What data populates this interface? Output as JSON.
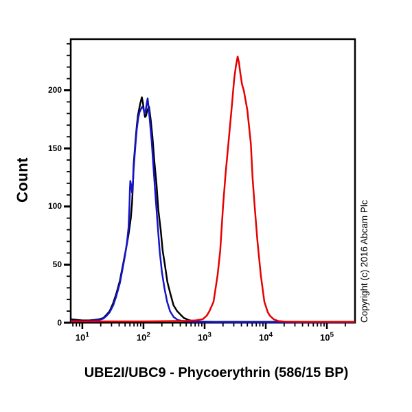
{
  "copyright": "Copyright (c) 2016 Abcam Plc",
  "chart_data": {
    "type": "line",
    "subtype": "flow-cytometry-overlay-histogram",
    "title": "",
    "xlabel": "UBE2I/UBC9 - Phycoerythrin (586/15 BP)",
    "ylabel": "Count",
    "x_scale": "log10",
    "x_range_log10": [
      0.81,
      5.46
    ],
    "ylim": [
      0,
      244
    ],
    "yticks_major": [
      0,
      50,
      100,
      150,
      200
    ],
    "ytick_minor_step": 10,
    "xtick_label_base": "10",
    "xtick_decade_exponents": [
      1,
      2,
      3,
      4,
      5
    ],
    "grid": false,
    "legend": "none",
    "axis_color": "#000000",
    "series": [
      {
        "name": "black",
        "color": "#000000",
        "points": [
          [
            6.5,
            3
          ],
          [
            8,
            2.5
          ],
          [
            10,
            2
          ],
          [
            13,
            2
          ],
          [
            16,
            2.5
          ],
          [
            19,
            3
          ],
          [
            22,
            4
          ],
          [
            25,
            7
          ],
          [
            28,
            10
          ],
          [
            32,
            17
          ],
          [
            36,
            25
          ],
          [
            41,
            36
          ],
          [
            47,
            52
          ],
          [
            52,
            64
          ],
          [
            57,
            76
          ],
          [
            62,
            90
          ],
          [
            65,
            103
          ],
          [
            67,
            118
          ],
          [
            69,
            136
          ],
          [
            72,
            148
          ],
          [
            75,
            160
          ],
          [
            78,
            170
          ],
          [
            81,
            178
          ],
          [
            85,
            184
          ],
          [
            88,
            188
          ],
          [
            94,
            194
          ],
          [
            98,
            189
          ],
          [
            102,
            182
          ],
          [
            106,
            177
          ],
          [
            110,
            178
          ],
          [
            116,
            183
          ],
          [
            123,
            186
          ],
          [
            131,
            175
          ],
          [
            140,
            160
          ],
          [
            151,
            138
          ],
          [
            163,
            120
          ],
          [
            175,
            97
          ],
          [
            191,
            80
          ],
          [
            206,
            62
          ],
          [
            224,
            50
          ],
          [
            246,
            35
          ],
          [
            275,
            25
          ],
          [
            310,
            15
          ],
          [
            356,
            10
          ],
          [
            420,
            6
          ],
          [
            460,
            4
          ],
          [
            540,
            2.5
          ],
          [
            630,
            1.5
          ],
          [
            800,
            1
          ],
          [
            1500,
            0.8
          ],
          [
            5000,
            0.8
          ],
          [
            20000,
            0.8
          ],
          [
            80000,
            0.8
          ],
          [
            280000,
            0.8
          ]
        ]
      },
      {
        "name": "blue",
        "color": "#1414cc",
        "points": [
          [
            6.5,
            2
          ],
          [
            8,
            1.5
          ],
          [
            10,
            1.5
          ],
          [
            13,
            1.5
          ],
          [
            16,
            2
          ],
          [
            19,
            2.5
          ],
          [
            22,
            3.5
          ],
          [
            25,
            6
          ],
          [
            28,
            9
          ],
          [
            32,
            15
          ],
          [
            36,
            23
          ],
          [
            41,
            34
          ],
          [
            45,
            45
          ],
          [
            50,
            58
          ],
          [
            54,
            70
          ],
          [
            57,
            82
          ],
          [
            59,
            100
          ],
          [
            60,
            115
          ],
          [
            61,
            122
          ],
          [
            63,
            118
          ],
          [
            65,
            112
          ],
          [
            67,
            120
          ],
          [
            69,
            132
          ],
          [
            72,
            145
          ],
          [
            75,
            157
          ],
          [
            78,
            167
          ],
          [
            82,
            176
          ],
          [
            86,
            181
          ],
          [
            91,
            184
          ],
          [
            96,
            186
          ],
          [
            100,
            184
          ],
          [
            104,
            180
          ],
          [
            108,
            182
          ],
          [
            112,
            187
          ],
          [
            117,
            193
          ],
          [
            122,
            184
          ],
          [
            128,
            172
          ],
          [
            136,
            157
          ],
          [
            146,
            133
          ],
          [
            158,
            108
          ],
          [
            170,
            85
          ],
          [
            184,
            62
          ],
          [
            200,
            44
          ],
          [
            220,
            30
          ],
          [
            244,
            18
          ],
          [
            272,
            10
          ],
          [
            310,
            5
          ],
          [
            360,
            2.5
          ],
          [
            430,
            1.5
          ],
          [
            550,
            1
          ],
          [
            900,
            0.7
          ],
          [
            3000,
            0.5
          ],
          [
            15000,
            0.5
          ],
          [
            70000,
            0.5
          ],
          [
            280000,
            0.5
          ]
        ]
      },
      {
        "name": "red",
        "color": "#e60000",
        "points": [
          [
            6.5,
            1.2
          ],
          [
            10,
            1.2
          ],
          [
            20,
            1.2
          ],
          [
            50,
            1.2
          ],
          [
            100,
            1.2
          ],
          [
            200,
            1.3
          ],
          [
            350,
            1.5
          ],
          [
            500,
            1.6
          ],
          [
            710,
            2
          ],
          [
            930,
            3
          ],
          [
            1080,
            6
          ],
          [
            1200,
            10
          ],
          [
            1400,
            18
          ],
          [
            1630,
            41
          ],
          [
            1800,
            62
          ],
          [
            2000,
            100
          ],
          [
            2200,
            128
          ],
          [
            2450,
            154
          ],
          [
            2750,
            183
          ],
          [
            3050,
            210
          ],
          [
            3250,
            221
          ],
          [
            3470,
            229
          ],
          [
            3650,
            224
          ],
          [
            3830,
            215
          ],
          [
            4100,
            205
          ],
          [
            4370,
            200
          ],
          [
            5000,
            183
          ],
          [
            5700,
            154
          ],
          [
            6100,
            124
          ],
          [
            6600,
            100
          ],
          [
            7300,
            71
          ],
          [
            8300,
            41
          ],
          [
            9500,
            18
          ],
          [
            10800,
            9
          ],
          [
            11700,
            6
          ],
          [
            13500,
            3
          ],
          [
            16000,
            1.5
          ],
          [
            20000,
            1
          ],
          [
            40000,
            0.8
          ],
          [
            100000,
            0.8
          ],
          [
            280000,
            0.8
          ]
        ]
      }
    ]
  }
}
